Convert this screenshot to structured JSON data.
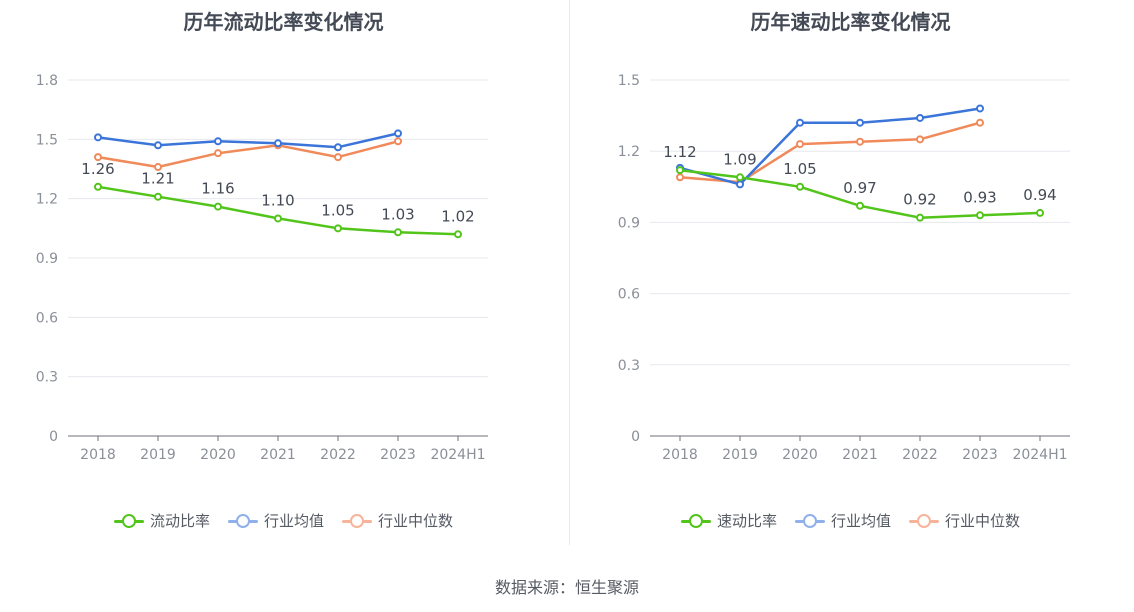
{
  "source": "数据来源：恒生聚源",
  "chart_data": [
    {
      "type": "line",
      "title": "历年流动比率变化情况",
      "categories": [
        "2018",
        "2019",
        "2020",
        "2021",
        "2022",
        "2023",
        "2024H1"
      ],
      "ylim": [
        0,
        1.8
      ],
      "yticks": [
        "0",
        "0.3",
        "0.6",
        "0.9",
        "1.2",
        "1.5",
        "1.8"
      ],
      "grid": true,
      "legend_position": "bottom",
      "series": [
        {
          "name": "流动比率",
          "color": "#52c41a",
          "values": [
            1.26,
            1.21,
            1.16,
            1.1,
            1.05,
            1.03,
            1.02
          ],
          "labels": [
            "1.26",
            "1.21",
            "1.16",
            "1.10",
            "1.05",
            "1.03",
            "1.02"
          ]
        },
        {
          "name": "行业均值",
          "color": "#3b75d9",
          "values": [
            1.51,
            1.47,
            1.49,
            1.48,
            1.46,
            1.53,
            null
          ]
        },
        {
          "name": "行业中位数",
          "color": "#f08a5a",
          "values": [
            1.41,
            1.36,
            1.43,
            1.47,
            1.41,
            1.49,
            null
          ]
        }
      ]
    },
    {
      "type": "line",
      "title": "历年速动比率变化情况",
      "categories": [
        "2018",
        "2019",
        "2020",
        "2021",
        "2022",
        "2023",
        "2024H1"
      ],
      "ylim": [
        0,
        1.5
      ],
      "yticks": [
        "0",
        "0.3",
        "0.6",
        "0.9",
        "1.2",
        "1.5"
      ],
      "grid": true,
      "legend_position": "bottom",
      "series": [
        {
          "name": "速动比率",
          "color": "#52c41a",
          "values": [
            1.12,
            1.09,
            1.05,
            0.97,
            0.92,
            0.93,
            0.94
          ],
          "labels": [
            "1.12",
            "1.09",
            "1.05",
            "0.97",
            "0.92",
            "0.93",
            "0.94"
          ]
        },
        {
          "name": "行业均值",
          "color": "#3b75d9",
          "values": [
            1.13,
            1.06,
            1.32,
            1.32,
            1.34,
            1.38,
            null
          ]
        },
        {
          "name": "行业中位数",
          "color": "#f08a5a",
          "values": [
            1.09,
            1.07,
            1.23,
            1.24,
            1.25,
            1.32,
            null
          ]
        }
      ]
    }
  ],
  "legend_colors": [
    "#52c41a",
    "#8fb0ea",
    "#f7b49a"
  ]
}
